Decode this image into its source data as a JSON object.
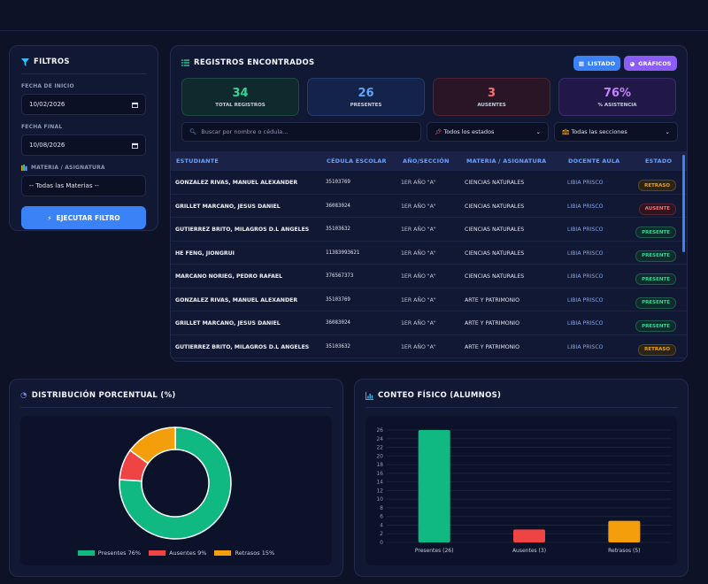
{
  "filters": {
    "title": "FILTROS",
    "start_label": "FECHA DE INICIO",
    "start_value": "10/02/2026",
    "end_label": "FECHA FINAL",
    "end_value": "10/08/2026",
    "subject_label": "MATERIA / ASIGNATURA",
    "subject_value": "-- Todas las Materias --",
    "run_label": "EJECUTAR FILTRO"
  },
  "records": {
    "title": "REGISTROS ENCONTRADOS",
    "btn_list": "LISTADO",
    "btn_charts": "GRÁFICOS",
    "kpis": [
      {
        "value": "34",
        "label": "TOTAL REGISTROS",
        "color": "#34d399"
      },
      {
        "value": "26",
        "label": "PRESENTES",
        "color": "#60a5fa"
      },
      {
        "value": "3",
        "label": "AUSENTES",
        "color": "#f87171"
      },
      {
        "value": "76%",
        "label": "% ASISTENCIA",
        "color": "#c084fc"
      }
    ],
    "search_placeholder": "Buscar por nombre o cédula...",
    "status_filter": "Todos los estados",
    "section_filter": "Todas las secciones",
    "columns": [
      "ESTUDIANTE",
      "CÉDULA ESCOLAR",
      "AÑO/SECCIÓN",
      "MATERIA / ASIGNATURA",
      "DOCENTE AULA",
      "ESTADO"
    ],
    "rows": [
      {
        "name": "GONZALEZ RIVAS, MANUEL ALEXANDER",
        "ced": "35103769",
        "ano": "1ER AÑO \"A\"",
        "mat": "CIENCIAS NATURALES",
        "doc": "LIBIA PRISCO",
        "estado": "RETRASO",
        "cls": "b-retraso"
      },
      {
        "name": "GRILLET MARCANO, JESUS DANIEL",
        "ced": "36083024",
        "ano": "1ER AÑO \"A\"",
        "mat": "CIENCIAS NATURALES",
        "doc": "LIBIA PRISCO",
        "estado": "AUSENTE",
        "cls": "b-ausente"
      },
      {
        "name": "GUTIERREZ BRITO, MILAGROS D.L ANGELES",
        "ced": "35103632",
        "ano": "1ER AÑO \"A\"",
        "mat": "CIENCIAS NATURALES",
        "doc": "LIBIA PRISCO",
        "estado": "PRESENTE",
        "cls": "b-presente"
      },
      {
        "name": "HE FENG, JIONGRUI",
        "ced": "11383093621",
        "ano": "1ER AÑO \"A\"",
        "mat": "CIENCIAS NATURALES",
        "doc": "LIBIA PRISCO",
        "estado": "PRESENTE",
        "cls": "b-presente"
      },
      {
        "name": "MARCANO NORIEG, PEDRO RAFAEL",
        "ced": "376567373",
        "ano": "1ER AÑO \"A\"",
        "mat": "CIENCIAS NATURALES",
        "doc": "LIBIA PRISCO",
        "estado": "PRESENTE",
        "cls": "b-presente"
      },
      {
        "name": "GONZALEZ RIVAS, MANUEL ALEXANDER",
        "ced": "35103769",
        "ano": "1ER AÑO \"A\"",
        "mat": "ARTE Y PATRIMONIO",
        "doc": "LIBIA PRISCO",
        "estado": "PRESENTE",
        "cls": "b-presente"
      },
      {
        "name": "GRILLET MARCANO, JESUS DANIEL",
        "ced": "36083024",
        "ano": "1ER AÑO \"A\"",
        "mat": "ARTE Y PATRIMONIO",
        "doc": "LIBIA PRISCO",
        "estado": "PRESENTE",
        "cls": "b-presente"
      },
      {
        "name": "GUTIERREZ BRITO, MILAGROS D.L ANGELES",
        "ced": "35103632",
        "ano": "1ER AÑO \"A\"",
        "mat": "ARTE Y PATRIMONIO",
        "doc": "LIBIA PRISCO",
        "estado": "RETRASO",
        "cls": "b-retraso"
      }
    ]
  },
  "pie_title": "DISTRIBUCIÓN PORCENTUAL (%)",
  "bar_title": "CONTEO FÍSICO (ALUMNOS)",
  "chart_data": [
    {
      "type": "pie",
      "title": "DISTRIBUCIÓN PORCENTUAL (%)",
      "categories": [
        "Presentes 76%",
        "Ausentes 9%",
        "Retrasos 15%"
      ],
      "values": [
        76,
        9,
        15
      ],
      "colors": [
        "#10b981",
        "#ef4444",
        "#f59e0b"
      ],
      "legend": "bottom"
    },
    {
      "type": "bar",
      "title": "CONTEO FÍSICO (ALUMNOS)",
      "categories": [
        "Presentes (26)",
        "Ausentes (3)",
        "Retrasos (5)"
      ],
      "values": [
        26,
        3,
        5
      ],
      "colors": [
        "#10b981",
        "#ef4444",
        "#f59e0b"
      ],
      "ylim": [
        0,
        26
      ],
      "yticks": [
        0,
        2,
        4,
        6,
        8,
        10,
        12,
        14,
        16,
        18,
        20,
        22,
        24,
        26
      ],
      "grid": true
    }
  ]
}
